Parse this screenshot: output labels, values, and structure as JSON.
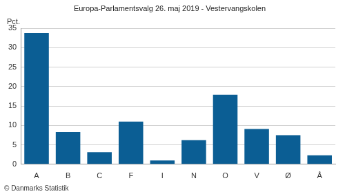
{
  "chart_data": {
    "type": "bar",
    "title": "Europa-Parlamentsvalg 26. maj 2019 - Vestervangskolen",
    "ylabel": "Pct.",
    "caption": "© Danmarks Statistik",
    "categories": [
      "A",
      "B",
      "C",
      "F",
      "I",
      "N",
      "O",
      "V",
      "Ø",
      "Å"
    ],
    "values": [
      33.8,
      8.3,
      3.1,
      11.0,
      1.0,
      6.2,
      17.9,
      9.1,
      7.5,
      2.3
    ],
    "color": "#0b5e94",
    "ylim": [
      0,
      35
    ],
    "yticks": [
      0,
      5,
      10,
      15,
      20,
      25,
      30,
      35
    ],
    "grid": true
  }
}
